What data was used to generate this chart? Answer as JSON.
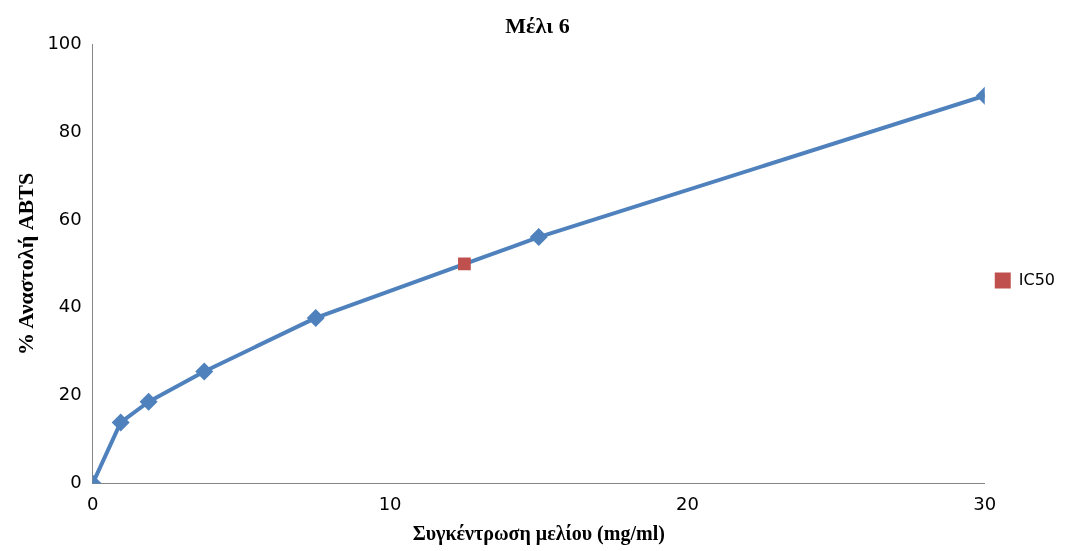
{
  "chart_data": {
    "type": "line",
    "title": "Μέλι 6",
    "xlabel": "Συγκέντρωση μελίου (mg/ml)",
    "ylabel": "% Αναστολή ABTS",
    "xlim": [
      0,
      30
    ],
    "xticks": [
      0,
      10,
      20,
      30
    ],
    "ylim": [
      0,
      100
    ],
    "yticks": [
      0,
      20,
      40,
      60,
      80,
      100
    ],
    "grid": false,
    "legend": "right",
    "line_style": "solid",
    "series": [
      {
        "color": "#4f81bd",
        "marker": "diamond",
        "x": [
          0,
          0.94,
          1.88,
          3.75,
          7.5,
          15,
          30
        ],
        "values": [
          0,
          13.9,
          18.6,
          25.5,
          37.7,
          56.1,
          88.3
        ]
      },
      {
        "name": "IC50",
        "color": "#c0504d",
        "marker": "square",
        "x": [
          12.5
        ],
        "values": [
          50
        ]
      }
    ]
  }
}
